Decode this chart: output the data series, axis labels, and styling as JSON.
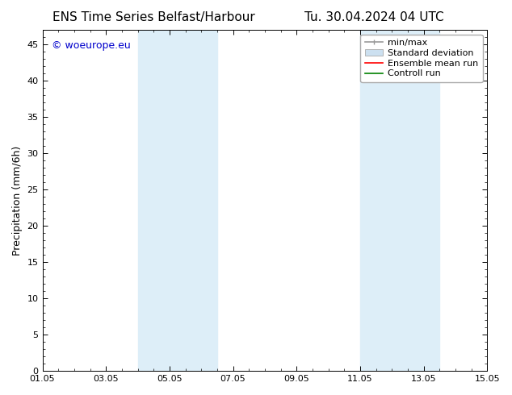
{
  "title_left": "ENS Time Series Belfast/Harbour",
  "title_right": "Tu. 30.04.2024 04 UTC",
  "ylabel": "Precipitation (mm/6h)",
  "xlabel": "",
  "xlim": [
    0,
    14
  ],
  "ylim": [
    0,
    47
  ],
  "yticks": [
    0,
    5,
    10,
    15,
    20,
    25,
    30,
    35,
    40,
    45
  ],
  "xtick_labels": [
    "01.05",
    "03.05",
    "05.05",
    "07.05",
    "09.05",
    "11.05",
    "13.05",
    "15.05"
  ],
  "xtick_positions": [
    0,
    2,
    4,
    6,
    8,
    10,
    12,
    14
  ],
  "shaded_regions": [
    {
      "xstart": 3.0,
      "xend": 5.5
    },
    {
      "xstart": 10.0,
      "xend": 12.5
    }
  ],
  "shade_color": "#ddeef8",
  "background_color": "#ffffff",
  "plot_bg_color": "#ffffff",
  "watermark_text": "© woeurope.eu",
  "watermark_color": "#0000cc",
  "legend_items": [
    {
      "label": "min/max",
      "color": "#999999"
    },
    {
      "label": "Standard deviation",
      "color": "#cce0f0"
    },
    {
      "label": "Ensemble mean run",
      "color": "#ff0000"
    },
    {
      "label": "Controll run",
      "color": "#008000"
    }
  ],
  "title_fontsize": 11,
  "axis_fontsize": 9,
  "tick_fontsize": 8,
  "legend_fontsize": 8,
  "watermark_fontsize": 9
}
